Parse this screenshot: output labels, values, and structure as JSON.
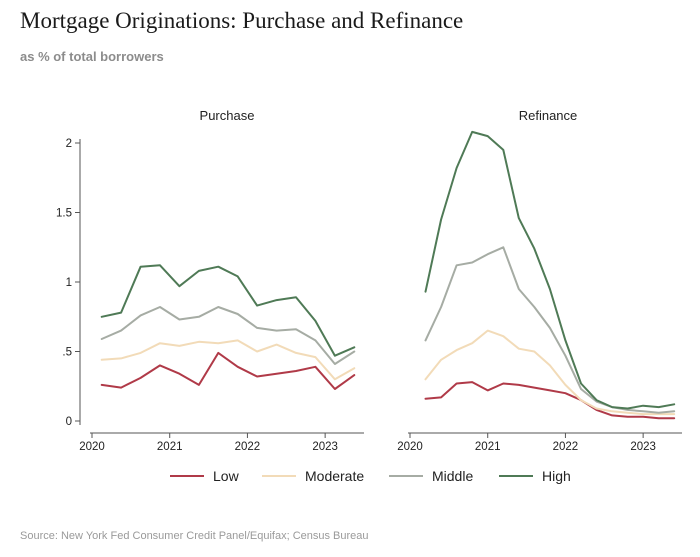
{
  "header": {
    "title": "Mortgage Originations: Purchase and Refinance",
    "subtitle": "as % of total borrowers"
  },
  "footer": {
    "source": "Source: New York Fed Consumer Credit Panel/Equifax; Census Bureau"
  },
  "colors": {
    "Low": "#b03a48",
    "Moderate": "#f2dbb8",
    "Middle": "#a6aca4",
    "High": "#4f7a56"
  },
  "chart_data": [
    {
      "type": "line",
      "title": "Purchase",
      "xlabel": "",
      "ylabel": "",
      "ylim": [
        0,
        2.1
      ],
      "yticks": [
        0,
        0.5,
        1,
        1.5,
        2
      ],
      "ytick_labels": [
        "0",
        ".5",
        "1",
        "1.5",
        "2"
      ],
      "xlim": [
        2020.0,
        2023.5
      ],
      "xticks": [
        2020,
        2021,
        2022,
        2023
      ],
      "xtick_labels": [
        "2020",
        "2021",
        "2022",
        "2023"
      ],
      "grid": false,
      "x": [
        2020.125,
        2020.375,
        2020.625,
        2020.875,
        2021.125,
        2021.375,
        2021.625,
        2021.875,
        2022.125,
        2022.375,
        2022.625,
        2022.875,
        2023.125,
        2023.375
      ],
      "series": [
        {
          "name": "Low",
          "values": [
            0.26,
            0.24,
            0.31,
            0.4,
            0.34,
            0.26,
            0.49,
            0.39,
            0.32,
            0.34,
            0.36,
            0.39,
            0.23,
            0.33
          ]
        },
        {
          "name": "Moderate",
          "values": [
            0.44,
            0.45,
            0.49,
            0.56,
            0.54,
            0.57,
            0.56,
            0.58,
            0.5,
            0.55,
            0.49,
            0.46,
            0.3,
            0.38
          ]
        },
        {
          "name": "Middle",
          "values": [
            0.59,
            0.65,
            0.76,
            0.82,
            0.73,
            0.75,
            0.82,
            0.77,
            0.67,
            0.65,
            0.66,
            0.58,
            0.41,
            0.5
          ]
        },
        {
          "name": "High",
          "values": [
            0.75,
            0.78,
            1.11,
            1.12,
            0.97,
            1.08,
            1.11,
            1.04,
            0.83,
            0.87,
            0.89,
            0.72,
            0.47,
            0.53
          ]
        }
      ]
    },
    {
      "type": "line",
      "title": "Refinance",
      "xlabel": "",
      "ylabel": "",
      "ylim": [
        0,
        2.1
      ],
      "yticks": [
        0,
        0.5,
        1,
        1.5,
        2
      ],
      "xlim": [
        2020.0,
        2023.5
      ],
      "xticks": [
        2020,
        2021,
        2022,
        2023
      ],
      "xtick_labels": [
        "2020",
        "2021",
        "2022",
        "2023"
      ],
      "grid": false,
      "x": [
        2020.2,
        2020.4,
        2020.6,
        2020.8,
        2021.0,
        2021.2,
        2021.4,
        2021.6,
        2021.8,
        2022.0,
        2022.2,
        2022.4,
        2022.6,
        2022.8,
        2023.0,
        2023.2,
        2023.4
      ],
      "series": [
        {
          "name": "Low",
          "values": [
            0.16,
            0.17,
            0.27,
            0.28,
            0.22,
            0.27,
            0.26,
            0.24,
            0.22,
            0.2,
            0.15,
            0.08,
            0.04,
            0.03,
            0.03,
            0.02,
            0.02
          ]
        },
        {
          "name": "Moderate",
          "values": [
            0.3,
            0.44,
            0.51,
            0.56,
            0.65,
            0.61,
            0.52,
            0.5,
            0.4,
            0.26,
            0.15,
            0.09,
            0.07,
            0.06,
            0.05,
            0.05,
            0.05
          ]
        },
        {
          "name": "Middle",
          "values": [
            0.58,
            0.82,
            1.12,
            1.14,
            1.2,
            1.25,
            0.95,
            0.82,
            0.67,
            0.47,
            0.23,
            0.14,
            0.1,
            0.08,
            0.07,
            0.06,
            0.07
          ]
        },
        {
          "name": "High",
          "values": [
            0.93,
            1.45,
            1.82,
            2.08,
            2.05,
            1.95,
            1.46,
            1.24,
            0.95,
            0.58,
            0.27,
            0.15,
            0.1,
            0.09,
            0.11,
            0.1,
            0.12
          ]
        }
      ]
    }
  ],
  "legend": {
    "placement": "bottom",
    "items": [
      "Low",
      "Moderate",
      "Middle",
      "High"
    ]
  }
}
